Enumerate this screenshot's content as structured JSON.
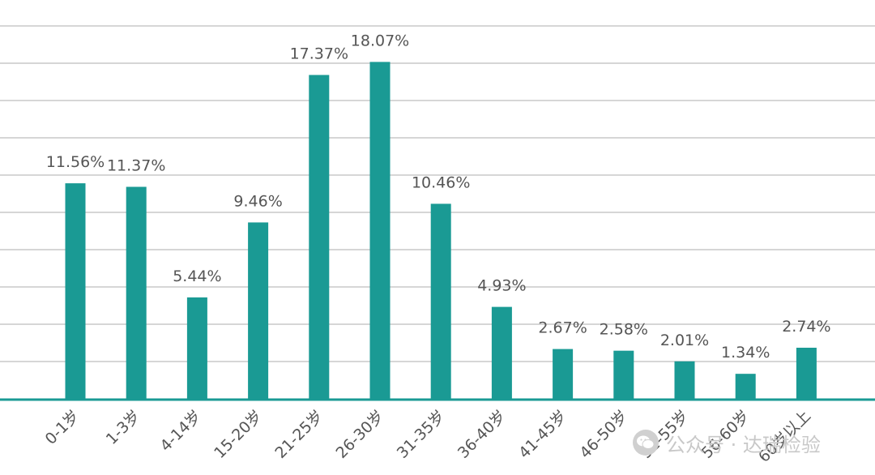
{
  "chart_data": {
    "type": "bar",
    "categories": [
      "0-1岁",
      "1-3岁",
      "4-14岁",
      "15-20岁",
      "21-25岁",
      "26-30岁",
      "31-35岁",
      "36-40岁",
      "41-45岁",
      "46-50岁",
      "51-55岁",
      "56-60岁",
      "60岁以上"
    ],
    "values": [
      11.56,
      11.37,
      5.44,
      9.46,
      17.37,
      18.07,
      10.46,
      4.93,
      2.67,
      2.58,
      2.01,
      1.34,
      2.74
    ],
    "data_labels": [
      "11.56%",
      "11.37%",
      "5.44%",
      "9.46%",
      "17.37%",
      "18.07%",
      "10.46%",
      "4.93%",
      "2.67%",
      "2.58%",
      "2.01%",
      "1.34%",
      "2.74%"
    ],
    "ylim": [
      0,
      20
    ],
    "gridline_step": 2,
    "grid": true,
    "bar_color": "#1a9a94",
    "axis_color": "#1a9a94",
    "title": "",
    "xlabel": "",
    "ylabel": ""
  },
  "watermark": {
    "icon": "wechat-icon",
    "text": "公众号 · 达瑞检验"
  }
}
